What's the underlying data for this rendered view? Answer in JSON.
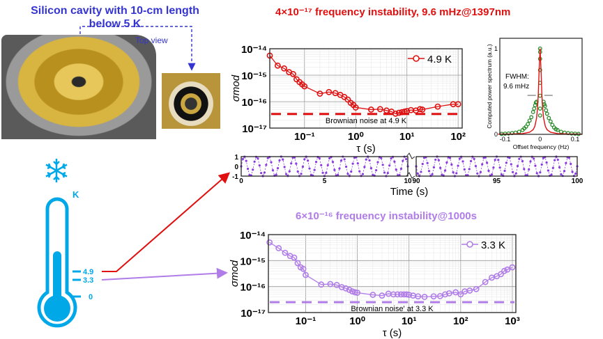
{
  "header": {
    "cavity_title_line1": "Silicon cavity with 10-cm length",
    "cavity_title_line2": "below 5 K",
    "top_view_label": "Top view"
  },
  "thermometer": {
    "unit": "K",
    "ticks": [
      "4.9",
      "3.3",
      "0"
    ],
    "color": "#00a8e8"
  },
  "icons": [
    "snowflake-icon",
    "thermometer-icon"
  ],
  "colors": {
    "red": "#e01010",
    "purple": "#b07ce8",
    "blue": "#3434d0",
    "green": "#2a8a2a"
  },
  "chart_data": [
    {
      "type": "scatter",
      "title": "4×10⁻¹⁷ frequency instability, 9.6 mHz@1397nm",
      "xlabel": "τ (s)",
      "ylabel": "σmod",
      "xscale": "log",
      "yscale": "log",
      "xlim": [
        0.021,
        120
      ],
      "ylim": [
        1e-17,
        1e-14
      ],
      "xticks": [
        "10⁻¹",
        "10⁰",
        "10¹",
        "10²"
      ],
      "yticks": [
        "10⁻¹⁴",
        "10⁻¹⁵",
        "10⁻¹⁶",
        "10⁻¹⁷"
      ],
      "grid": true,
      "legend": "top-right",
      "series": [
        {
          "name": "4.9 K",
          "color": "#e01010",
          "x": [
            0.021,
            0.03,
            0.04,
            0.05,
            0.06,
            0.07,
            0.08,
            0.09,
            0.1,
            0.2,
            0.3,
            0.4,
            0.5,
            0.6,
            0.7,
            0.8,
            0.9,
            1,
            2,
            3,
            4,
            5,
            6,
            7,
            8,
            9,
            10,
            12,
            15,
            18,
            20,
            40,
            80,
            100
          ],
          "y": [
            5.5e-15,
            2.3e-15,
            1.8e-15,
            1.3e-15,
            1.1e-15,
            7e-16,
            5.5e-16,
            4.5e-16,
            3.8e-16,
            2e-16,
            2.3e-16,
            2.1e-16,
            1.8e-16,
            1.5e-16,
            1.2e-16,
            9e-17,
            7.5e-17,
            6e-17,
            5e-17,
            5.2e-17,
            4.6e-17,
            4.2e-17,
            3.5e-17,
            3.8e-17,
            4e-17,
            4.2e-17,
            4.4e-17,
            4.8e-17,
            4.6e-17,
            5.2e-17,
            5e-17,
            6.5e-17,
            8e-17,
            8e-17
          ]
        }
      ],
      "reference_line": {
        "label": "Brownian noise at 4.9 K",
        "y": 3.4e-17
      }
    },
    {
      "type": "scatter",
      "title": "",
      "xlabel": "Offset frequency (Hz)",
      "ylabel": "Computed power spectrum (a.u.)",
      "xlim": [
        -0.115,
        0.12
      ],
      "ylim": [
        0,
        1.12
      ],
      "xticks": [
        "-0.1",
        "0",
        "0.1"
      ],
      "yticks": [
        "0",
        "1"
      ],
      "annotation": "FWHM:\n9.6 mHz",
      "series": [
        {
          "kind": "line",
          "color": "#e01010",
          "x": [
            -0.12,
            -0.08,
            -0.05,
            -0.03,
            -0.02,
            -0.015,
            -0.01,
            -0.007,
            -0.005,
            -0.003,
            0,
            0.003,
            0.005,
            0.007,
            0.01,
            0.015,
            0.02,
            0.03,
            0.05,
            0.08,
            0.12
          ],
          "y": [
            0.002,
            0.004,
            0.009,
            0.025,
            0.054,
            0.093,
            0.19,
            0.32,
            0.48,
            0.72,
            1,
            0.72,
            0.48,
            0.32,
            0.19,
            0.093,
            0.054,
            0.025,
            0.009,
            0.004,
            0.002
          ]
        },
        {
          "kind": "points",
          "color": "#2a8a2a",
          "x": [
            -0.11,
            -0.1,
            -0.09,
            -0.08,
            -0.07,
            -0.06,
            -0.05,
            -0.045,
            -0.04,
            -0.035,
            -0.03,
            -0.025,
            -0.02,
            -0.017,
            -0.014,
            -0.012,
            -0.01,
            0,
            0,
            0,
            0,
            0,
            0,
            0,
            0,
            0.01,
            0.012,
            0.014,
            0.017,
            0.02,
            0.025,
            0.03,
            0.035,
            0.04,
            0.045,
            0.05,
            0.06,
            0.07,
            0.08,
            0.09,
            0.1,
            0.11
          ],
          "y": [
            0.005,
            0.008,
            0.01,
            0.015,
            0.02,
            0.03,
            0.05,
            0.07,
            0.09,
            0.12,
            0.16,
            0.2,
            0.26,
            0.3,
            0.34,
            0.37,
            0.38,
            0.22,
            0.3,
            0.45,
            0.6,
            0.75,
            0.88,
            0.96,
            1,
            0.38,
            0.35,
            0.33,
            0.28,
            0.24,
            0.19,
            0.15,
            0.11,
            0.08,
            0.06,
            0.05,
            0.03,
            0.02,
            0.015,
            0.01,
            0.008,
            0.005
          ]
        }
      ]
    },
    {
      "type": "line",
      "xlabel": "Time (s)",
      "xticks_left": [
        "0",
        "5",
        "10"
      ],
      "xticks_right": [
        "90",
        "95",
        "100"
      ],
      "yticks": [
        "1",
        "0",
        "-1"
      ],
      "ylim": [
        -1,
        1
      ],
      "segments": [
        [
          0,
          10
        ],
        [
          90,
          100
        ]
      ],
      "series": [
        {
          "color": "#8a3ae0",
          "amplitude": 1,
          "frequency_hz": 1.35,
          "sample_interval_s": 0.1
        }
      ]
    },
    {
      "type": "scatter",
      "title": "6×10⁻¹⁶ frequency instability@1000s",
      "xlabel": "τ (s)",
      "ylabel": "σmod",
      "xscale": "log",
      "yscale": "log",
      "xlim": [
        0.019,
        1170
      ],
      "ylim": [
        1e-17,
        1e-14
      ],
      "xticks": [
        "10⁻¹",
        "10⁰",
        "10¹",
        "10²",
        "10³"
      ],
      "yticks": [
        "10⁻¹⁴",
        "10⁻¹⁵",
        "10⁻¹⁶",
        "10⁻¹⁷"
      ],
      "grid": true,
      "legend": "top-right",
      "series": [
        {
          "name": "3.3 K",
          "color": "#b07ce8",
          "x": [
            0.02,
            0.03,
            0.04,
            0.05,
            0.06,
            0.07,
            0.08,
            0.09,
            0.1,
            0.2,
            0.3,
            0.4,
            0.5,
            0.6,
            0.7,
            0.8,
            0.9,
            1,
            2,
            3,
            4,
            5,
            6,
            7,
            8,
            9,
            10,
            12,
            15,
            20,
            30,
            40,
            50,
            60,
            80,
            100,
            120,
            150,
            200,
            300,
            400,
            500,
            600,
            700,
            800,
            1000
          ],
          "y": [
            5e-15,
            3e-15,
            2e-15,
            1.5e-15,
            1.3e-15,
            8e-16,
            5.5e-16,
            4.8e-16,
            2.8e-16,
            1.2e-16,
            1.25e-16,
            1.15e-16,
            9.5e-17,
            8.5e-17,
            7.5e-17,
            6.5e-17,
            6e-17,
            5.8e-17,
            4.8e-17,
            4.5e-17,
            5.3e-17,
            5e-17,
            5e-17,
            5e-17,
            5e-17,
            5e-17,
            4.8e-17,
            4.5e-17,
            4.2e-17,
            4e-17,
            4.2e-17,
            4.3e-17,
            5e-17,
            5.5e-17,
            6e-17,
            5e-17,
            6.5e-17,
            7e-17,
            8e-17,
            1.5e-16,
            2.2e-16,
            2.5e-16,
            3e-16,
            4e-16,
            4.5e-16,
            5.5e-16
          ]
        }
      ],
      "reference_line": {
        "label": "Brownian noise' at 3.3 K",
        "y": 2.5e-17
      }
    }
  ]
}
